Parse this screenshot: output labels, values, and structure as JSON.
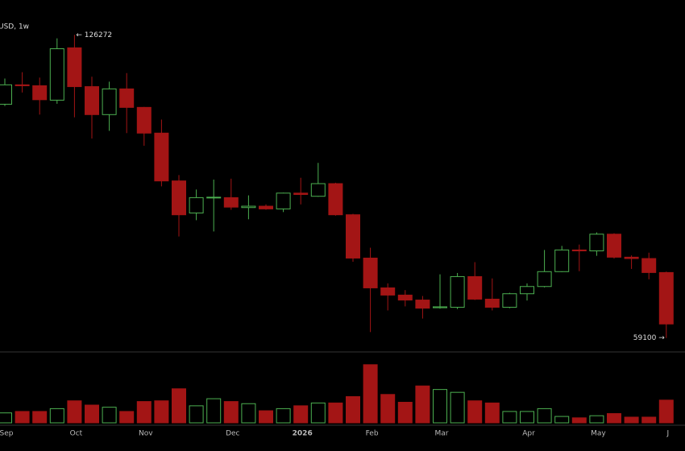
{
  "chart_data": {
    "type": "candlestick",
    "title": "USD, 1w",
    "categories": [
      "Sep",
      null,
      null,
      null,
      "Oct",
      null,
      null,
      null,
      "Nov",
      null,
      null,
      null,
      null,
      "Dec",
      null,
      null,
      null,
      "2026",
      null,
      null,
      null,
      "Feb",
      null,
      null,
      null,
      "Mar",
      null,
      null,
      null,
      null,
      "Apr",
      null,
      null,
      null,
      "May",
      null,
      null,
      null,
      "J"
    ],
    "open": [
      110900,
      115200,
      115000,
      111800,
      123400,
      114800,
      108600,
      114300,
      110200,
      104500,
      93900,
      86800,
      90200,
      90200,
      88000,
      88300,
      87700,
      91200,
      90500,
      93300,
      86400,
      76800,
      70200,
      68600,
      67500,
      65800,
      65900,
      72700,
      67700,
      65900,
      68900,
      70500,
      73800,
      78600,
      78400,
      82100,
      77000,
      76700,
      73600
    ],
    "high": [
      116600,
      118000,
      116800,
      125500,
      126272,
      117000,
      115900,
      117800,
      110300,
      107500,
      95200,
      92000,
      94200,
      94400,
      90700,
      88700,
      91300,
      94600,
      97900,
      93500,
      86600,
      79100,
      71200,
      69700,
      68400,
      73200,
      73500,
      75900,
      72300,
      69100,
      71200,
      78600,
      79500,
      79800,
      82500,
      82300,
      77400,
      78000,
      73800
    ],
    "low": [
      110500,
      113500,
      108600,
      111000,
      108000,
      103300,
      105000,
      104500,
      101700,
      92700,
      81600,
      85200,
      82700,
      87500,
      85400,
      87500,
      87000,
      88700,
      90400,
      86200,
      76000,
      60400,
      65200,
      66100,
      63400,
      65600,
      65500,
      67500,
      65200,
      65700,
      67400,
      70300,
      73700,
      73900,
      77300,
      76700,
      74400,
      72100,
      59100
    ],
    "close": [
      115200,
      115000,
      111900,
      123200,
      114800,
      108600,
      114300,
      110200,
      104500,
      93900,
      86400,
      90200,
      90300,
      88100,
      88300,
      87700,
      91200,
      90900,
      93300,
      86400,
      76800,
      70200,
      68600,
      67500,
      65700,
      66000,
      72700,
      67700,
      65900,
      68900,
      70500,
      73800,
      78600,
      78400,
      82100,
      77000,
      76700,
      73600,
      62200
    ],
    "volume": [
      14,
      16,
      16,
      20,
      31,
      25,
      22,
      16,
      30,
      31,
      48,
      24,
      34,
      30,
      27,
      17,
      20,
      24,
      28,
      28,
      37,
      82,
      40,
      29,
      52,
      47,
      43,
      31,
      28,
      16,
      16,
      20,
      9,
      7,
      10,
      13,
      8,
      8,
      32
    ],
    "ylim": [
      56000,
      134000
    ],
    "vlim": [
      0,
      100
    ],
    "up_color": "#4caf50",
    "down_color": "#a31515",
    "annotations": [
      "← 126272",
      "59100 →"
    ]
  }
}
